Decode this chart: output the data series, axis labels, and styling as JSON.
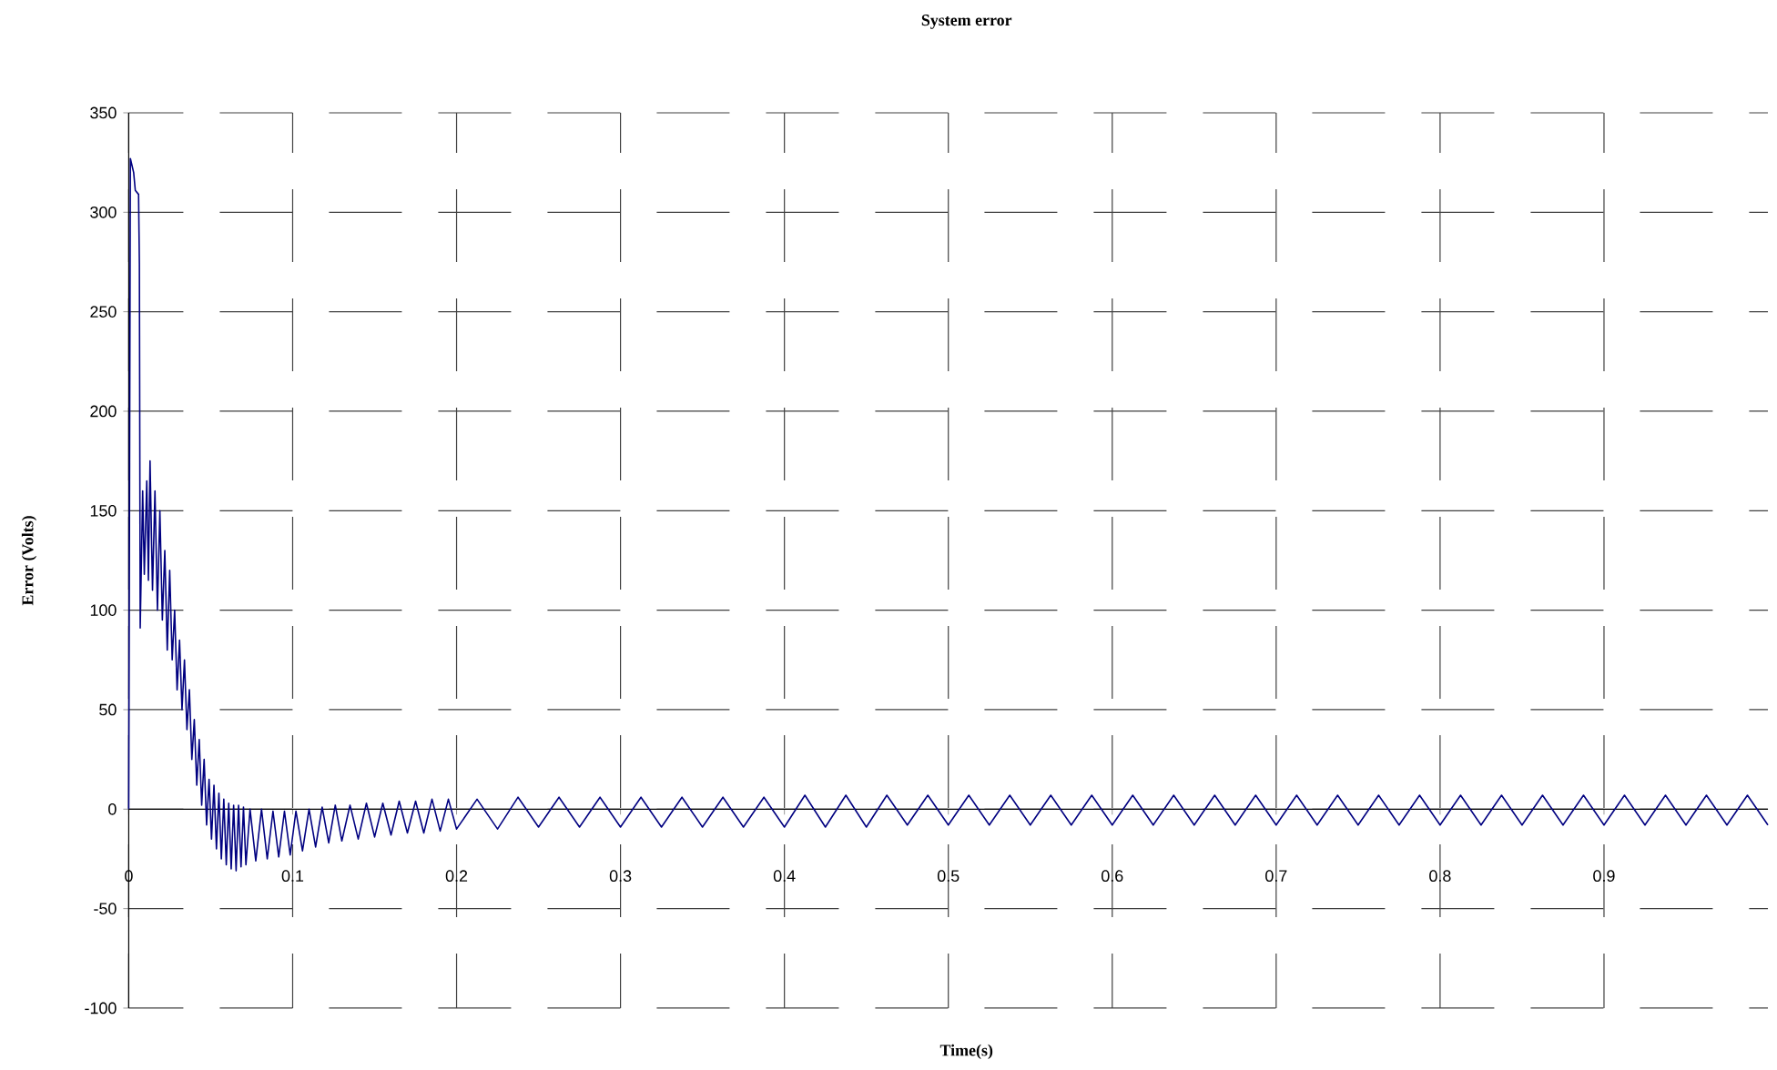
{
  "chart_data": {
    "type": "line",
    "title": "System error",
    "xlabel": "Time(s)",
    "ylabel": "Error (Volts)",
    "xlim": [
      0,
      1
    ],
    "ylim": [
      -100,
      350
    ],
    "xticks": [
      0,
      0.1,
      0.2,
      0.3,
      0.4,
      0.5,
      0.6,
      0.7,
      0.8,
      0.9
    ],
    "yticks": [
      -100,
      -50,
      0,
      50,
      100,
      150,
      200,
      250,
      300,
      350
    ],
    "grid": true,
    "series": [
      {
        "color": "#000080",
        "x": [
          0,
          0.001,
          0.003,
          0.004,
          0.006,
          0.0065,
          0.007,
          0.0085,
          0.0095,
          0.011,
          0.012,
          0.013,
          0.0145,
          0.016,
          0.0175,
          0.019,
          0.0205,
          0.022,
          0.0235,
          0.025,
          0.0265,
          0.028,
          0.0295,
          0.031,
          0.0325,
          0.034,
          0.0355,
          0.037,
          0.0385,
          0.04,
          0.0415,
          0.043,
          0.0445,
          0.046,
          0.0475,
          0.049,
          0.0505,
          0.052,
          0.0535,
          0.055,
          0.0565,
          0.058,
          0.0595,
          0.061,
          0.0625,
          0.064,
          0.0655,
          0.067,
          0.0685,
          0.07,
          0.0715,
          0.074,
          0.0775,
          0.081,
          0.0845,
          0.088,
          0.0915,
          0.095,
          0.0985,
          0.102,
          0.106,
          0.11,
          0.114,
          0.118,
          0.122,
          0.126,
          0.13,
          0.135,
          0.14,
          0.145,
          0.15,
          0.155,
          0.16,
          0.165,
          0.17,
          0.175,
          0.18,
          0.185,
          0.19,
          0.195,
          0.2,
          0.2125,
          0.225,
          0.2375,
          0.25,
          0.2625,
          0.275,
          0.2875,
          0.3,
          0.3125,
          0.325,
          0.3375,
          0.35,
          0.3625,
          0.375,
          0.3875,
          0.4,
          0.4125,
          0.425,
          0.4375,
          0.45,
          0.4625,
          0.475,
          0.4875,
          0.5,
          0.5125,
          0.525,
          0.5375,
          0.55,
          0.5625,
          0.575,
          0.5875,
          0.6,
          0.6125,
          0.625,
          0.6375,
          0.65,
          0.6625,
          0.675,
          0.6875,
          0.7,
          0.7125,
          0.725,
          0.7375,
          0.75,
          0.7625,
          0.775,
          0.7875,
          0.8,
          0.8125,
          0.825,
          0.8375,
          0.85,
          0.8625,
          0.875,
          0.8875,
          0.9,
          0.9125,
          0.925,
          0.9375,
          0.95,
          0.9625,
          0.975,
          0.9875,
          1.0
        ],
        "values": [
          0,
          327,
          320,
          311,
          309,
          274,
          91,
          160,
          118,
          165,
          115,
          175,
          110,
          160,
          100,
          150,
          95,
          130,
          80,
          120,
          75,
          100,
          60,
          85,
          50,
          75,
          40,
          60,
          25,
          45,
          12,
          35,
          2,
          25,
          -8,
          15,
          -15,
          12,
          -20,
          8,
          -25,
          5,
          -28,
          3,
          -30,
          2,
          -31,
          2,
          -29,
          1,
          -28,
          0,
          -26,
          0,
          -25,
          -1,
          -24,
          -1,
          -23,
          -1,
          -21,
          0,
          -19,
          1,
          -17,
          2,
          -16,
          2,
          -15,
          3,
          -14,
          3,
          -13,
          4,
          -12,
          4,
          -12,
          5,
          -11,
          5,
          -10,
          5,
          -10,
          6,
          -9,
          6,
          -9,
          6,
          -9,
          6,
          -9,
          6,
          -9,
          6,
          -9,
          6,
          -9,
          7,
          -9,
          7,
          -9,
          7,
          -8,
          7,
          -8,
          7,
          -8,
          7,
          -8,
          7,
          -8,
          7,
          -8,
          7,
          -8,
          7,
          -8,
          7,
          -8,
          7,
          -8,
          7,
          -8,
          7,
          -8,
          7,
          -8,
          7,
          -8,
          7,
          -8,
          7,
          -8,
          7,
          -8,
          7,
          -8,
          7,
          -8,
          7,
          -8,
          7,
          -8,
          7,
          -8
        ]
      }
    ]
  }
}
